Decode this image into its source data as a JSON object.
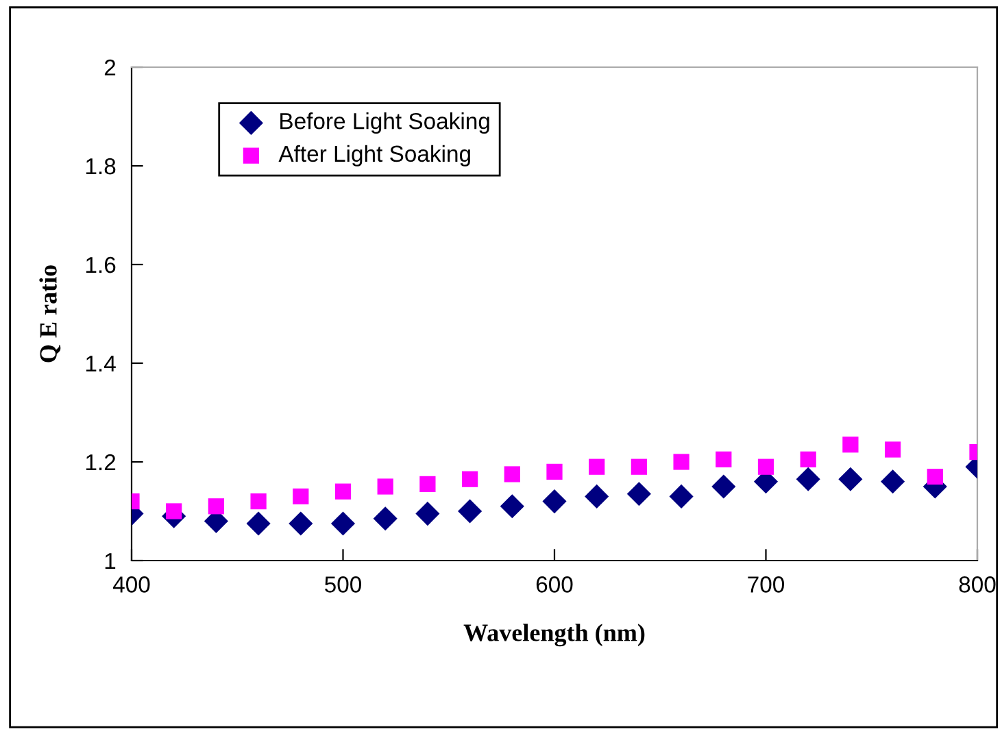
{
  "chart_data": {
    "type": "scatter",
    "xlabel": "Wavelength (nm)",
    "ylabel": "Q E ratio",
    "x": [
      400,
      420,
      440,
      460,
      480,
      500,
      520,
      540,
      560,
      580,
      600,
      620,
      640,
      660,
      680,
      700,
      720,
      740,
      760,
      780,
      800
    ],
    "series": [
      {
        "name": "Before Light Soaking",
        "color": "#000080",
        "marker": "diamond",
        "values": [
          1.095,
          1.09,
          1.08,
          1.075,
          1.075,
          1.075,
          1.085,
          1.095,
          1.1,
          1.11,
          1.12,
          1.13,
          1.135,
          1.13,
          1.15,
          1.16,
          1.165,
          1.165,
          1.16,
          1.15,
          1.19
        ]
      },
      {
        "name": "After Light Soaking",
        "color": "#ff00ff",
        "marker": "square",
        "values": [
          1.12,
          1.1,
          1.11,
          1.12,
          1.13,
          1.14,
          1.15,
          1.155,
          1.165,
          1.175,
          1.18,
          1.19,
          1.19,
          1.2,
          1.205,
          1.19,
          1.205,
          1.235,
          1.225,
          1.17,
          1.22
        ]
      }
    ],
    "xlim": [
      400,
      800
    ],
    "xticks": [
      400,
      500,
      600,
      700,
      800
    ],
    "ylim": [
      1,
      2
    ],
    "yticks": [
      {
        "value": 1,
        "label": "1"
      },
      1.2,
      1.4,
      1.6,
      1.8,
      {
        "value": 2,
        "label": "2"
      }
    ],
    "grid": false,
    "legend": "top left"
  }
}
